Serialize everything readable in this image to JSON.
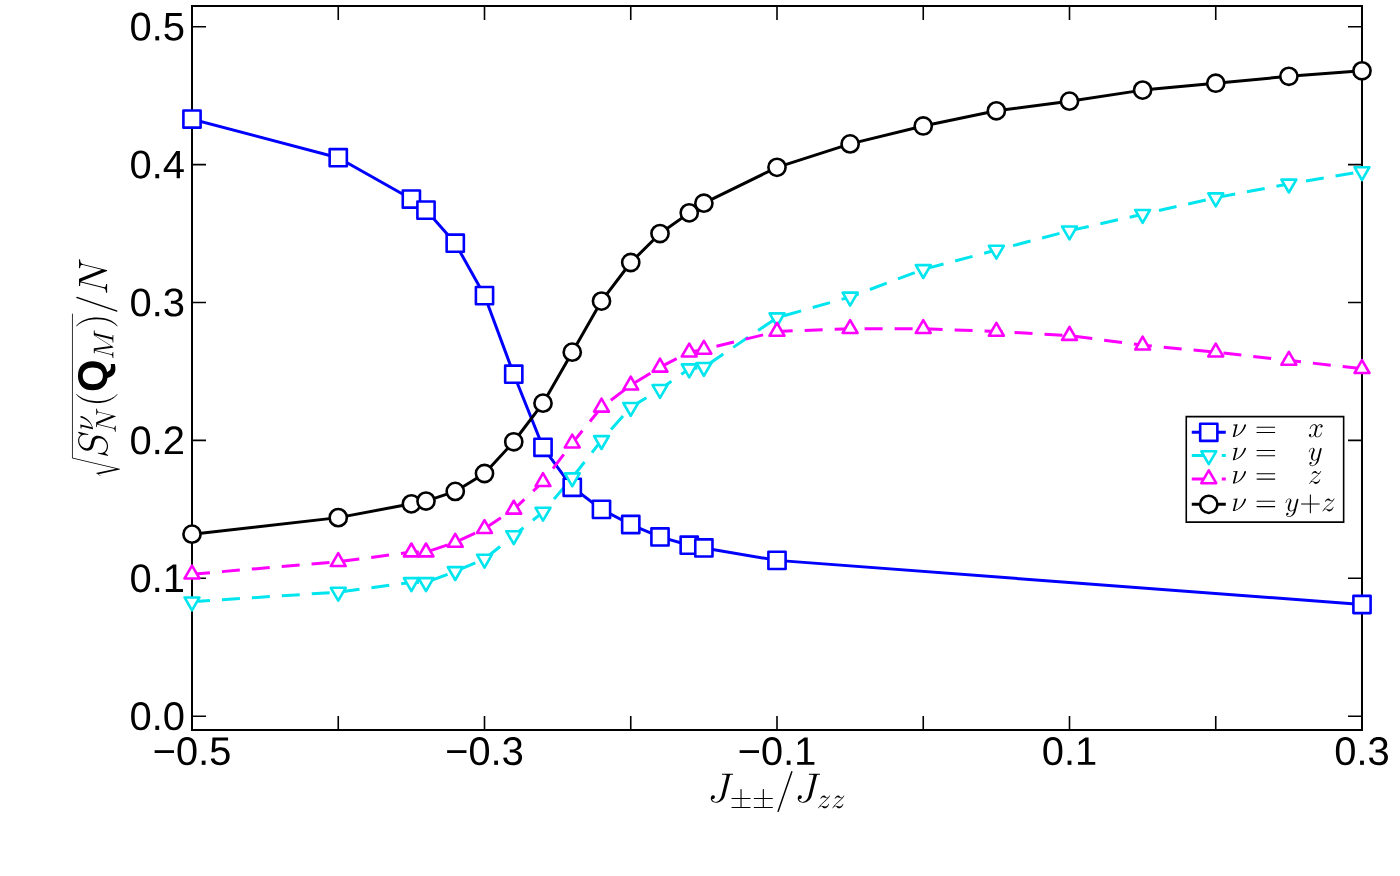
{
  "chart_data": {
    "type": "line",
    "xlabel": "J_{\\pm\\pm}/J_{zz}",
    "ylabel": "\\sqrt{S_N^{\\nu}(\\mathbf{Q}_M)}/N",
    "x": [
      -0.5,
      -0.4,
      -0.35,
      -0.34,
      -0.32,
      -0.3,
      -0.28,
      -0.26,
      -0.24,
      -0.22,
      -0.2,
      -0.18,
      -0.16,
      -0.15,
      -0.1,
      -0.05,
      0,
      0.05,
      0.1,
      0.15,
      0.2,
      0.25,
      0.3
    ],
    "series": [
      {
        "name": "\\nu =\\ \\ \\ x",
        "color": "#0000ff",
        "marker": "square",
        "line_style": "solid",
        "x": [
          -0.5,
          -0.4,
          -0.35,
          -0.34,
          -0.32,
          -0.3,
          -0.28,
          -0.26,
          -0.24,
          -0.22,
          -0.2,
          -0.18,
          -0.16,
          -0.15,
          -0.1,
          0.3
        ],
        "values": [
          0.433,
          0.405,
          0.375,
          0.367,
          0.343,
          0.305,
          0.248,
          0.195,
          0.166,
          0.15,
          0.139,
          0.13,
          0.124,
          0.122,
          0.113,
          0.081
        ]
      },
      {
        "name": "\\nu =\\ \\ \\ y",
        "color": "#00e5ee",
        "marker": "triangle_down",
        "line_style": "dashed",
        "values": [
          0.083,
          0.09,
          0.097,
          0.097,
          0.105,
          0.114,
          0.131,
          0.148,
          0.173,
          0.2,
          0.224,
          0.237,
          0.252,
          0.253,
          0.289,
          0.304,
          0.324,
          0.338,
          0.352,
          0.364,
          0.376,
          0.386,
          0.395
        ]
      },
      {
        "name": "\\nu =\\ \\ \\ z",
        "color": "#ff00ff",
        "marker": "triangle",
        "line_style": "dashed",
        "values": [
          0.103,
          0.112,
          0.119,
          0.119,
          0.126,
          0.136,
          0.15,
          0.17,
          0.198,
          0.224,
          0.24,
          0.253,
          0.264,
          0.266,
          0.279,
          0.281,
          0.281,
          0.279,
          0.276,
          0.269,
          0.264,
          0.258,
          0.252
        ]
      },
      {
        "name": "\\nu = y{+}z",
        "color": "#000000",
        "marker": "circle",
        "line_style": "solid",
        "values": [
          0.132,
          0.144,
          0.154,
          0.156,
          0.163,
          0.176,
          0.199,
          0.227,
          0.264,
          0.301,
          0.329,
          0.35,
          0.365,
          0.372,
          0.398,
          0.415,
          0.428,
          0.439,
          0.446,
          0.454,
          0.459,
          0.464,
          0.468
        ]
      }
    ],
    "xlim": [
      -0.5,
      0.3
    ],
    "ylim": [
      -0.01,
      0.515
    ],
    "xticks": [
      {
        "value": -0.5,
        "label": "−0.5"
      },
      {
        "value": -0.4,
        "label": null
      },
      {
        "value": -0.3,
        "label": "−0.3"
      },
      {
        "value": -0.2,
        "label": null
      },
      {
        "value": -0.1,
        "label": "−0.1"
      },
      {
        "value": 0,
        "label": null
      },
      {
        "value": 0.1,
        "label": "0.1"
      },
      {
        "value": 0.2,
        "label": null
      },
      {
        "value": 0.3,
        "label": "0.3"
      }
    ],
    "yticks": [
      {
        "value": 0,
        "label": "0.0"
      },
      {
        "value": 0.1,
        "label": "0.1"
      },
      {
        "value": 0.2,
        "label": "0.2"
      },
      {
        "value": 0.3,
        "label": "0.3"
      },
      {
        "value": 0.4,
        "label": "0.4"
      },
      {
        "value": 0.5,
        "label": "0.5"
      }
    ],
    "legend": "right",
    "grid": false
  }
}
